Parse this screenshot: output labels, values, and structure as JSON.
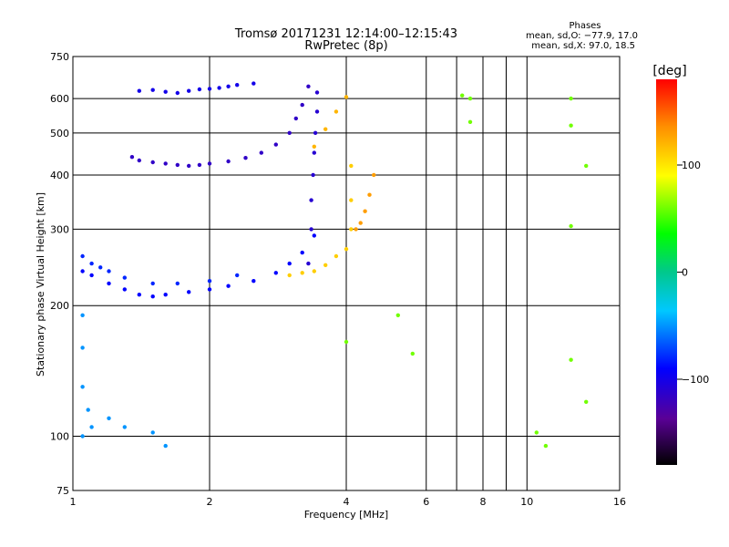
{
  "chart_data": {
    "type": "scatter",
    "title": "Tromsø 20171231 12:14:00–12:15:43",
    "subtitle": "RwPretec (8p)",
    "xlabel": "Frequency [MHz]",
    "ylabel": "Stationary phase Virtual Height [km]",
    "x_scale": "log",
    "y_scale": "log",
    "xlim": [
      1,
      16
    ],
    "ylim": [
      75,
      750
    ],
    "x_ticks": [
      1,
      2,
      4,
      6,
      8,
      10,
      16
    ],
    "x_tick_labels": [
      "1",
      "2",
      "4",
      "6",
      "8",
      "10",
      "16"
    ],
    "x_grid": [
      1,
      2,
      4,
      6,
      7,
      8,
      9,
      10,
      16
    ],
    "y_ticks": [
      75,
      100,
      200,
      300,
      400,
      500,
      600,
      750
    ],
    "y_tick_labels": [
      "75",
      "100",
      "200",
      "300",
      "400",
      "500",
      "600",
      "750"
    ],
    "grid": true,
    "stats": {
      "header": "Phases",
      "line1": "mean, sd,O: −77.9, 17.0",
      "line2": "mean, sd,X:  97.0, 18.5"
    },
    "colorbar": {
      "label": "[deg]",
      "min": -180,
      "max": 180,
      "tick_values": [
        100,
        0,
        -100
      ],
      "tick_labels": [
        "100",
        "0",
        "−100"
      ]
    },
    "series": [
      {
        "name": "upper F2 trace",
        "phase": -100,
        "points": [
          [
            1.4,
            625
          ],
          [
            1.5,
            628
          ],
          [
            1.6,
            622
          ],
          [
            1.7,
            618
          ],
          [
            1.8,
            625
          ],
          [
            1.9,
            630
          ],
          [
            2.0,
            632
          ],
          [
            2.1,
            635
          ],
          [
            2.2,
            640
          ],
          [
            2.3,
            645
          ],
          [
            2.5,
            650
          ]
        ]
      },
      {
        "name": "O-mode F trace",
        "phase": -115,
        "points": [
          [
            1.35,
            440
          ],
          [
            1.4,
            432
          ],
          [
            1.5,
            428
          ],
          [
            1.6,
            425
          ],
          [
            1.7,
            422
          ],
          [
            1.8,
            420
          ],
          [
            1.9,
            422
          ],
          [
            2.0,
            425
          ],
          [
            2.2,
            430
          ],
          [
            2.4,
            438
          ],
          [
            2.6,
            450
          ],
          [
            2.8,
            470
          ],
          [
            3.0,
            500
          ],
          [
            3.1,
            540
          ],
          [
            3.2,
            580
          ],
          [
            3.3,
            640
          ]
        ]
      },
      {
        "name": "O-mode cusp",
        "phase": -110,
        "points": [
          [
            3.3,
            250
          ],
          [
            3.35,
            300
          ],
          [
            3.35,
            350
          ],
          [
            3.38,
            400
          ],
          [
            3.4,
            450
          ],
          [
            3.42,
            500
          ],
          [
            3.45,
            560
          ],
          [
            3.45,
            620
          ]
        ]
      },
      {
        "name": "O-mode lower F",
        "phase": -90,
        "points": [
          [
            1.05,
            240
          ],
          [
            1.1,
            235
          ],
          [
            1.2,
            225
          ],
          [
            1.3,
            218
          ],
          [
            1.4,
            212
          ],
          [
            1.5,
            210
          ],
          [
            1.6,
            212
          ],
          [
            1.8,
            215
          ],
          [
            2.0,
            218
          ],
          [
            2.2,
            222
          ],
          [
            2.5,
            228
          ],
          [
            2.8,
            238
          ],
          [
            3.0,
            250
          ],
          [
            3.2,
            265
          ],
          [
            3.4,
            290
          ]
        ]
      },
      {
        "name": "O-mode scattered",
        "phase": -80,
        "points": [
          [
            1.05,
            260
          ],
          [
            1.1,
            250
          ],
          [
            1.15,
            245
          ],
          [
            1.2,
            240
          ],
          [
            1.3,
            232
          ],
          [
            1.5,
            225
          ],
          [
            1.7,
            225
          ],
          [
            2.0,
            228
          ],
          [
            2.3,
            235
          ]
        ]
      },
      {
        "name": "X-mode F trace",
        "phase": 110,
        "points": [
          [
            3.0,
            235
          ],
          [
            3.2,
            238
          ],
          [
            3.4,
            240
          ],
          [
            3.6,
            248
          ],
          [
            3.8,
            260
          ],
          [
            4.0,
            270
          ],
          [
            4.1,
            300
          ],
          [
            4.1,
            350
          ],
          [
            4.1,
            420
          ]
        ]
      },
      {
        "name": "X-mode upper",
        "phase": 120,
        "points": [
          [
            3.4,
            465
          ],
          [
            3.6,
            510
          ],
          [
            3.8,
            560
          ],
          [
            4.0,
            605
          ]
        ]
      },
      {
        "name": "X-mode cusp spread",
        "phase": 130,
        "points": [
          [
            4.2,
            300
          ],
          [
            4.3,
            310
          ],
          [
            4.4,
            330
          ],
          [
            4.5,
            360
          ],
          [
            4.6,
            400
          ]
        ]
      },
      {
        "name": "low-height echoes",
        "phase": -50,
        "points": [
          [
            1.05,
            190
          ],
          [
            1.05,
            160
          ],
          [
            1.05,
            130
          ],
          [
            1.08,
            115
          ],
          [
            1.05,
            100
          ],
          [
            1.1,
            105
          ],
          [
            1.2,
            110
          ],
          [
            1.3,
            105
          ],
          [
            1.5,
            102
          ],
          [
            1.6,
            95
          ]
        ]
      },
      {
        "name": "isolated echoes",
        "phase": 60,
        "points": [
          [
            4.0,
            165
          ],
          [
            5.2,
            190
          ],
          [
            5.6,
            155
          ],
          [
            7.2,
            610
          ],
          [
            7.5,
            600
          ],
          [
            7.5,
            530
          ],
          [
            12.5,
            600
          ],
          [
            12.5,
            520
          ],
          [
            13.5,
            420
          ],
          [
            12.5,
            305
          ],
          [
            12.5,
            150
          ],
          [
            13.5,
            120
          ],
          [
            10.5,
            102
          ],
          [
            11,
            95
          ]
        ]
      }
    ]
  }
}
